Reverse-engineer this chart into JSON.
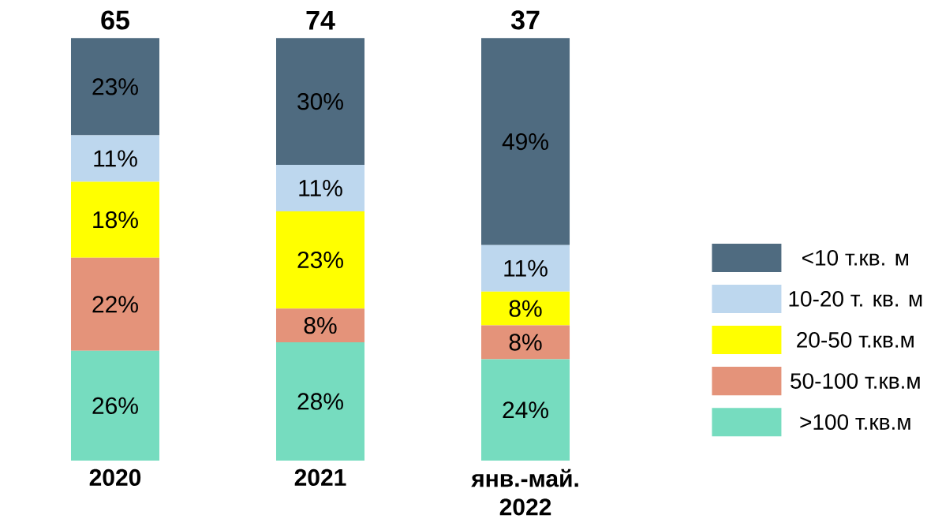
{
  "chart_data": {
    "type": "bar",
    "stacked": true,
    "categories": [
      "2020",
      "2021",
      "янв.-май. 2022"
    ],
    "series": [
      {
        "name": ">100 т.кв.м",
        "color": "#76dcbf",
        "values": [
          26,
          28,
          24
        ],
        "value_labels": [
          "26%",
          "28%",
          "24%"
        ]
      },
      {
        "name": "50-100 т.кв.м",
        "color": "#e4937a",
        "values": [
          22,
          8,
          8
        ],
        "value_labels": [
          "22%",
          "8%",
          "8%"
        ]
      },
      {
        "name": "20-50 т.кв.м",
        "color": "#ffff00",
        "values": [
          18,
          23,
          8
        ],
        "value_labels": [
          "18%",
          "23%",
          "8%"
        ]
      },
      {
        "name": "10-20 т. кв. м",
        "color": "#bdd7ee",
        "values": [
          11,
          11,
          11
        ],
        "value_labels": [
          "11%",
          "11%",
          "11%"
        ]
      },
      {
        "name": "<10 т.кв. м",
        "color": "#4f6b80",
        "values": [
          23,
          30,
          49
        ],
        "value_labels": [
          "23%",
          "30%",
          "49%"
        ]
      }
    ],
    "annotations": [
      "65",
      "74",
      "37"
    ],
    "legend": "right"
  }
}
